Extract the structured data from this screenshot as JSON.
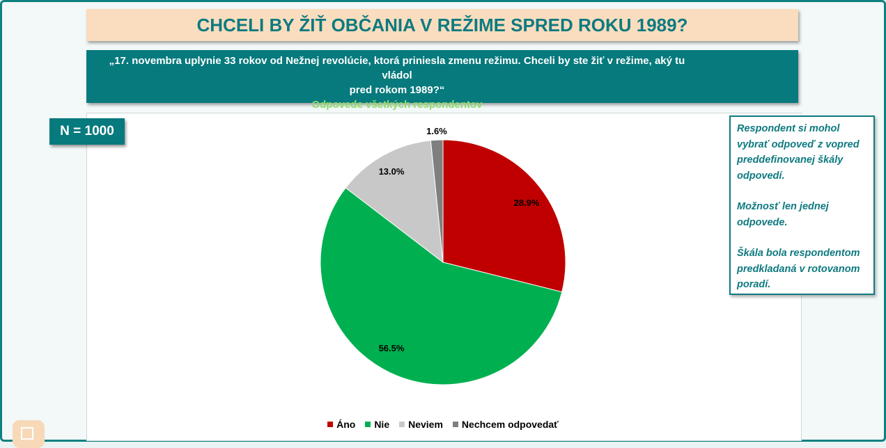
{
  "header": {
    "title": "CHCELI BY ŽIŤ OBČANIA V REŽIME SPRED ROKU 1989?",
    "question_line1": "„17. novembra uplynie 33 rokov od Nežnej revolúcie, ktorá priniesla zmenu režimu. Chceli by ste žiť v režime, aký tu vládol",
    "question_line2": "pred rokom 1989?“",
    "subtitle": "Odpovede všetkých respondentov"
  },
  "sample_size": "N = 1000",
  "note": {
    "p1": "Respondent  si mohol vybrať odpoveď z vopred preddefinovanej  škály odpovedí.",
    "p2": "Možnosť len jednej odpovede.",
    "p3": "Škála bola respondentom predkladaná v rotovanom poradí."
  },
  "chart_data": {
    "type": "pie",
    "categories": [
      "Áno",
      "Nie",
      "Neviem",
      "Nechcem odpovedať"
    ],
    "values": [
      28.9,
      56.5,
      13.0,
      1.6
    ],
    "labels": [
      "28.9%",
      "56.5%",
      "13.0%",
      "1.6%"
    ],
    "colors": [
      "#c00000",
      "#00b050",
      "#c8c8c8",
      "#7f7f7f"
    ],
    "legend": "bottom"
  }
}
